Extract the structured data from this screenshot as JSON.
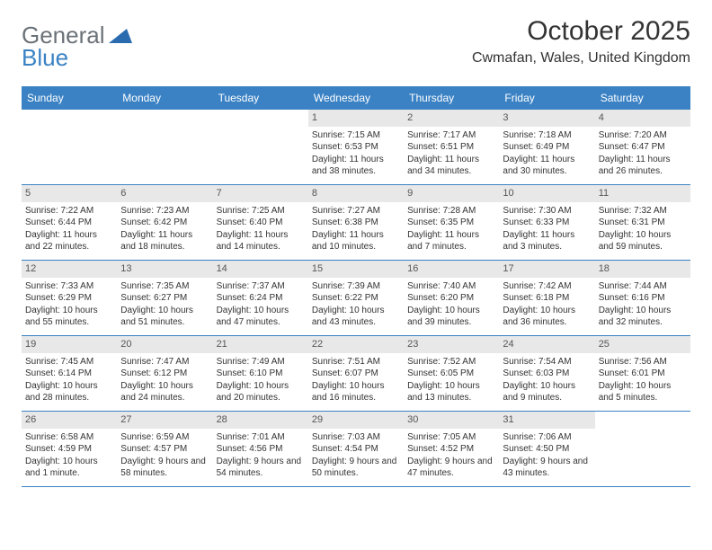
{
  "logo": {
    "text1": "General",
    "text2": "Blue"
  },
  "title": "October 2025",
  "location": "Cwmafan, Wales, United Kingdom",
  "colors": {
    "header_bg": "#3b82c4",
    "header_text": "#ffffff",
    "daynum_bg": "#e8e8e8",
    "daynum_text": "#555555",
    "body_text": "#333333",
    "logo_gray": "#6b7278",
    "logo_blue": "#3b82c4",
    "row_border": "#3b82c4"
  },
  "weekdays": [
    "Sunday",
    "Monday",
    "Tuesday",
    "Wednesday",
    "Thursday",
    "Friday",
    "Saturday"
  ],
  "weeks": [
    [
      {},
      {},
      {},
      {
        "n": "1",
        "sr": "7:15 AM",
        "ss": "6:53 PM",
        "dl": "11 hours and 38 minutes."
      },
      {
        "n": "2",
        "sr": "7:17 AM",
        "ss": "6:51 PM",
        "dl": "11 hours and 34 minutes."
      },
      {
        "n": "3",
        "sr": "7:18 AM",
        "ss": "6:49 PM",
        "dl": "11 hours and 30 minutes."
      },
      {
        "n": "4",
        "sr": "7:20 AM",
        "ss": "6:47 PM",
        "dl": "11 hours and 26 minutes."
      }
    ],
    [
      {
        "n": "5",
        "sr": "7:22 AM",
        "ss": "6:44 PM",
        "dl": "11 hours and 22 minutes."
      },
      {
        "n": "6",
        "sr": "7:23 AM",
        "ss": "6:42 PM",
        "dl": "11 hours and 18 minutes."
      },
      {
        "n": "7",
        "sr": "7:25 AM",
        "ss": "6:40 PM",
        "dl": "11 hours and 14 minutes."
      },
      {
        "n": "8",
        "sr": "7:27 AM",
        "ss": "6:38 PM",
        "dl": "11 hours and 10 minutes."
      },
      {
        "n": "9",
        "sr": "7:28 AM",
        "ss": "6:35 PM",
        "dl": "11 hours and 7 minutes."
      },
      {
        "n": "10",
        "sr": "7:30 AM",
        "ss": "6:33 PM",
        "dl": "11 hours and 3 minutes."
      },
      {
        "n": "11",
        "sr": "7:32 AM",
        "ss": "6:31 PM",
        "dl": "10 hours and 59 minutes."
      }
    ],
    [
      {
        "n": "12",
        "sr": "7:33 AM",
        "ss": "6:29 PM",
        "dl": "10 hours and 55 minutes."
      },
      {
        "n": "13",
        "sr": "7:35 AM",
        "ss": "6:27 PM",
        "dl": "10 hours and 51 minutes."
      },
      {
        "n": "14",
        "sr": "7:37 AM",
        "ss": "6:24 PM",
        "dl": "10 hours and 47 minutes."
      },
      {
        "n": "15",
        "sr": "7:39 AM",
        "ss": "6:22 PM",
        "dl": "10 hours and 43 minutes."
      },
      {
        "n": "16",
        "sr": "7:40 AM",
        "ss": "6:20 PM",
        "dl": "10 hours and 39 minutes."
      },
      {
        "n": "17",
        "sr": "7:42 AM",
        "ss": "6:18 PM",
        "dl": "10 hours and 36 minutes."
      },
      {
        "n": "18",
        "sr": "7:44 AM",
        "ss": "6:16 PM",
        "dl": "10 hours and 32 minutes."
      }
    ],
    [
      {
        "n": "19",
        "sr": "7:45 AM",
        "ss": "6:14 PM",
        "dl": "10 hours and 28 minutes."
      },
      {
        "n": "20",
        "sr": "7:47 AM",
        "ss": "6:12 PM",
        "dl": "10 hours and 24 minutes."
      },
      {
        "n": "21",
        "sr": "7:49 AM",
        "ss": "6:10 PM",
        "dl": "10 hours and 20 minutes."
      },
      {
        "n": "22",
        "sr": "7:51 AM",
        "ss": "6:07 PM",
        "dl": "10 hours and 16 minutes."
      },
      {
        "n": "23",
        "sr": "7:52 AM",
        "ss": "6:05 PM",
        "dl": "10 hours and 13 minutes."
      },
      {
        "n": "24",
        "sr": "7:54 AM",
        "ss": "6:03 PM",
        "dl": "10 hours and 9 minutes."
      },
      {
        "n": "25",
        "sr": "7:56 AM",
        "ss": "6:01 PM",
        "dl": "10 hours and 5 minutes."
      }
    ],
    [
      {
        "n": "26",
        "sr": "6:58 AM",
        "ss": "4:59 PM",
        "dl": "10 hours and 1 minute."
      },
      {
        "n": "27",
        "sr": "6:59 AM",
        "ss": "4:57 PM",
        "dl": "9 hours and 58 minutes."
      },
      {
        "n": "28",
        "sr": "7:01 AM",
        "ss": "4:56 PM",
        "dl": "9 hours and 54 minutes."
      },
      {
        "n": "29",
        "sr": "7:03 AM",
        "ss": "4:54 PM",
        "dl": "9 hours and 50 minutes."
      },
      {
        "n": "30",
        "sr": "7:05 AM",
        "ss": "4:52 PM",
        "dl": "9 hours and 47 minutes."
      },
      {
        "n": "31",
        "sr": "7:06 AM",
        "ss": "4:50 PM",
        "dl": "9 hours and 43 minutes."
      },
      {}
    ]
  ],
  "labels": {
    "sunrise": "Sunrise: ",
    "sunset": "Sunset: ",
    "daylight": "Daylight: "
  }
}
